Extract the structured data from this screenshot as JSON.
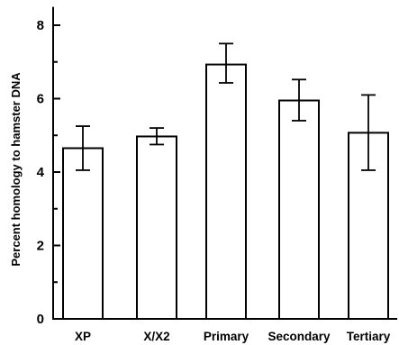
{
  "chart_data": {
    "type": "bar",
    "title": "",
    "xlabel": "",
    "ylabel": "Percent homology to hamster DNA",
    "categories": [
      "XP",
      "X/X2",
      "Primary",
      "Secondary",
      "Tertiary"
    ],
    "values": [
      4.65,
      4.97,
      6.93,
      5.95,
      5.07
    ],
    "error_low": [
      4.05,
      4.75,
      6.43,
      5.4,
      4.05
    ],
    "error_high": [
      5.25,
      5.2,
      7.5,
      6.52,
      6.1
    ],
    "ylim": [
      0,
      8.5
    ],
    "yticks_labeled": [
      0,
      2,
      4,
      6,
      8
    ],
    "yticks_minor": [
      1,
      3,
      5,
      7
    ],
    "grid": false,
    "legend": "none",
    "bar_fill": "#ffffff",
    "stroke_color": "#000000"
  }
}
